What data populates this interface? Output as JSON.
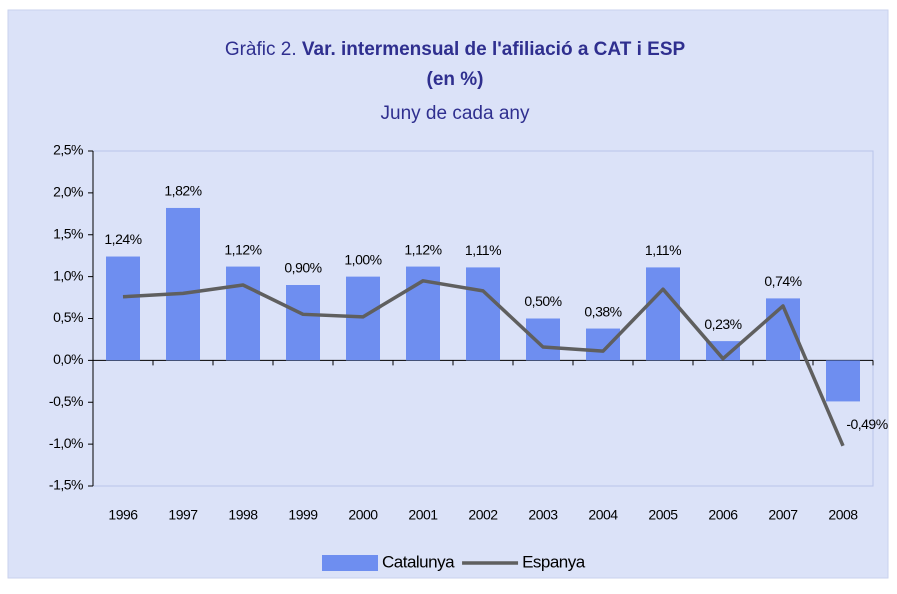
{
  "chart_data": {
    "type": "bar_line",
    "title_number": "Gràfic 2.",
    "title_lines": [
      "Var. intermensual de l'afiliació a CAT i ESP",
      "(en %)"
    ],
    "subtitle": "Juny de cada any",
    "categories": [
      "1996",
      "1997",
      "1998",
      "1999",
      "2000",
      "2001",
      "2002",
      "2003",
      "2004",
      "2005",
      "2006",
      "2007",
      "2008"
    ],
    "series": [
      {
        "name": "Catalunya",
        "type": "bar",
        "color": "#6e8ef0",
        "values": [
          1.24,
          1.82,
          1.12,
          0.9,
          1.0,
          1.12,
          1.11,
          0.5,
          0.38,
          1.11,
          0.23,
          0.74,
          -0.49
        ],
        "value_labels": [
          "1,24%",
          "1,82%",
          "1,12%",
          "0,90%",
          "1,00%",
          "1,12%",
          "1,11%",
          "0,50%",
          "0,38%",
          "1,11%",
          "0,23%",
          "0,74%",
          "-0,49%"
        ]
      },
      {
        "name": "Espanya",
        "type": "line",
        "color": "#5f5f5f",
        "values": [
          0.76,
          0.8,
          0.9,
          0.55,
          0.52,
          0.95,
          0.83,
          0.16,
          0.11,
          0.85,
          0.02,
          0.65,
          -1.02
        ]
      }
    ],
    "ylim": [
      -1.5,
      2.5
    ],
    "yticks": [
      {
        "value": -1.5,
        "label": "-1,5%"
      },
      {
        "value": -1.0,
        "label": "-1,0%"
      },
      {
        "value": -0.5,
        "label": "-0,5%"
      },
      {
        "value": 0,
        "label": "0,0%"
      },
      {
        "value": 0.5,
        "label": "0,5%"
      },
      {
        "value": 1.0,
        "label": "1,0%"
      },
      {
        "value": 1.5,
        "label": "1,5%"
      },
      {
        "value": 2.0,
        "label": "2,0%"
      },
      {
        "value": 2.5,
        "label": "2,5%"
      }
    ],
    "legend": "bottom"
  }
}
